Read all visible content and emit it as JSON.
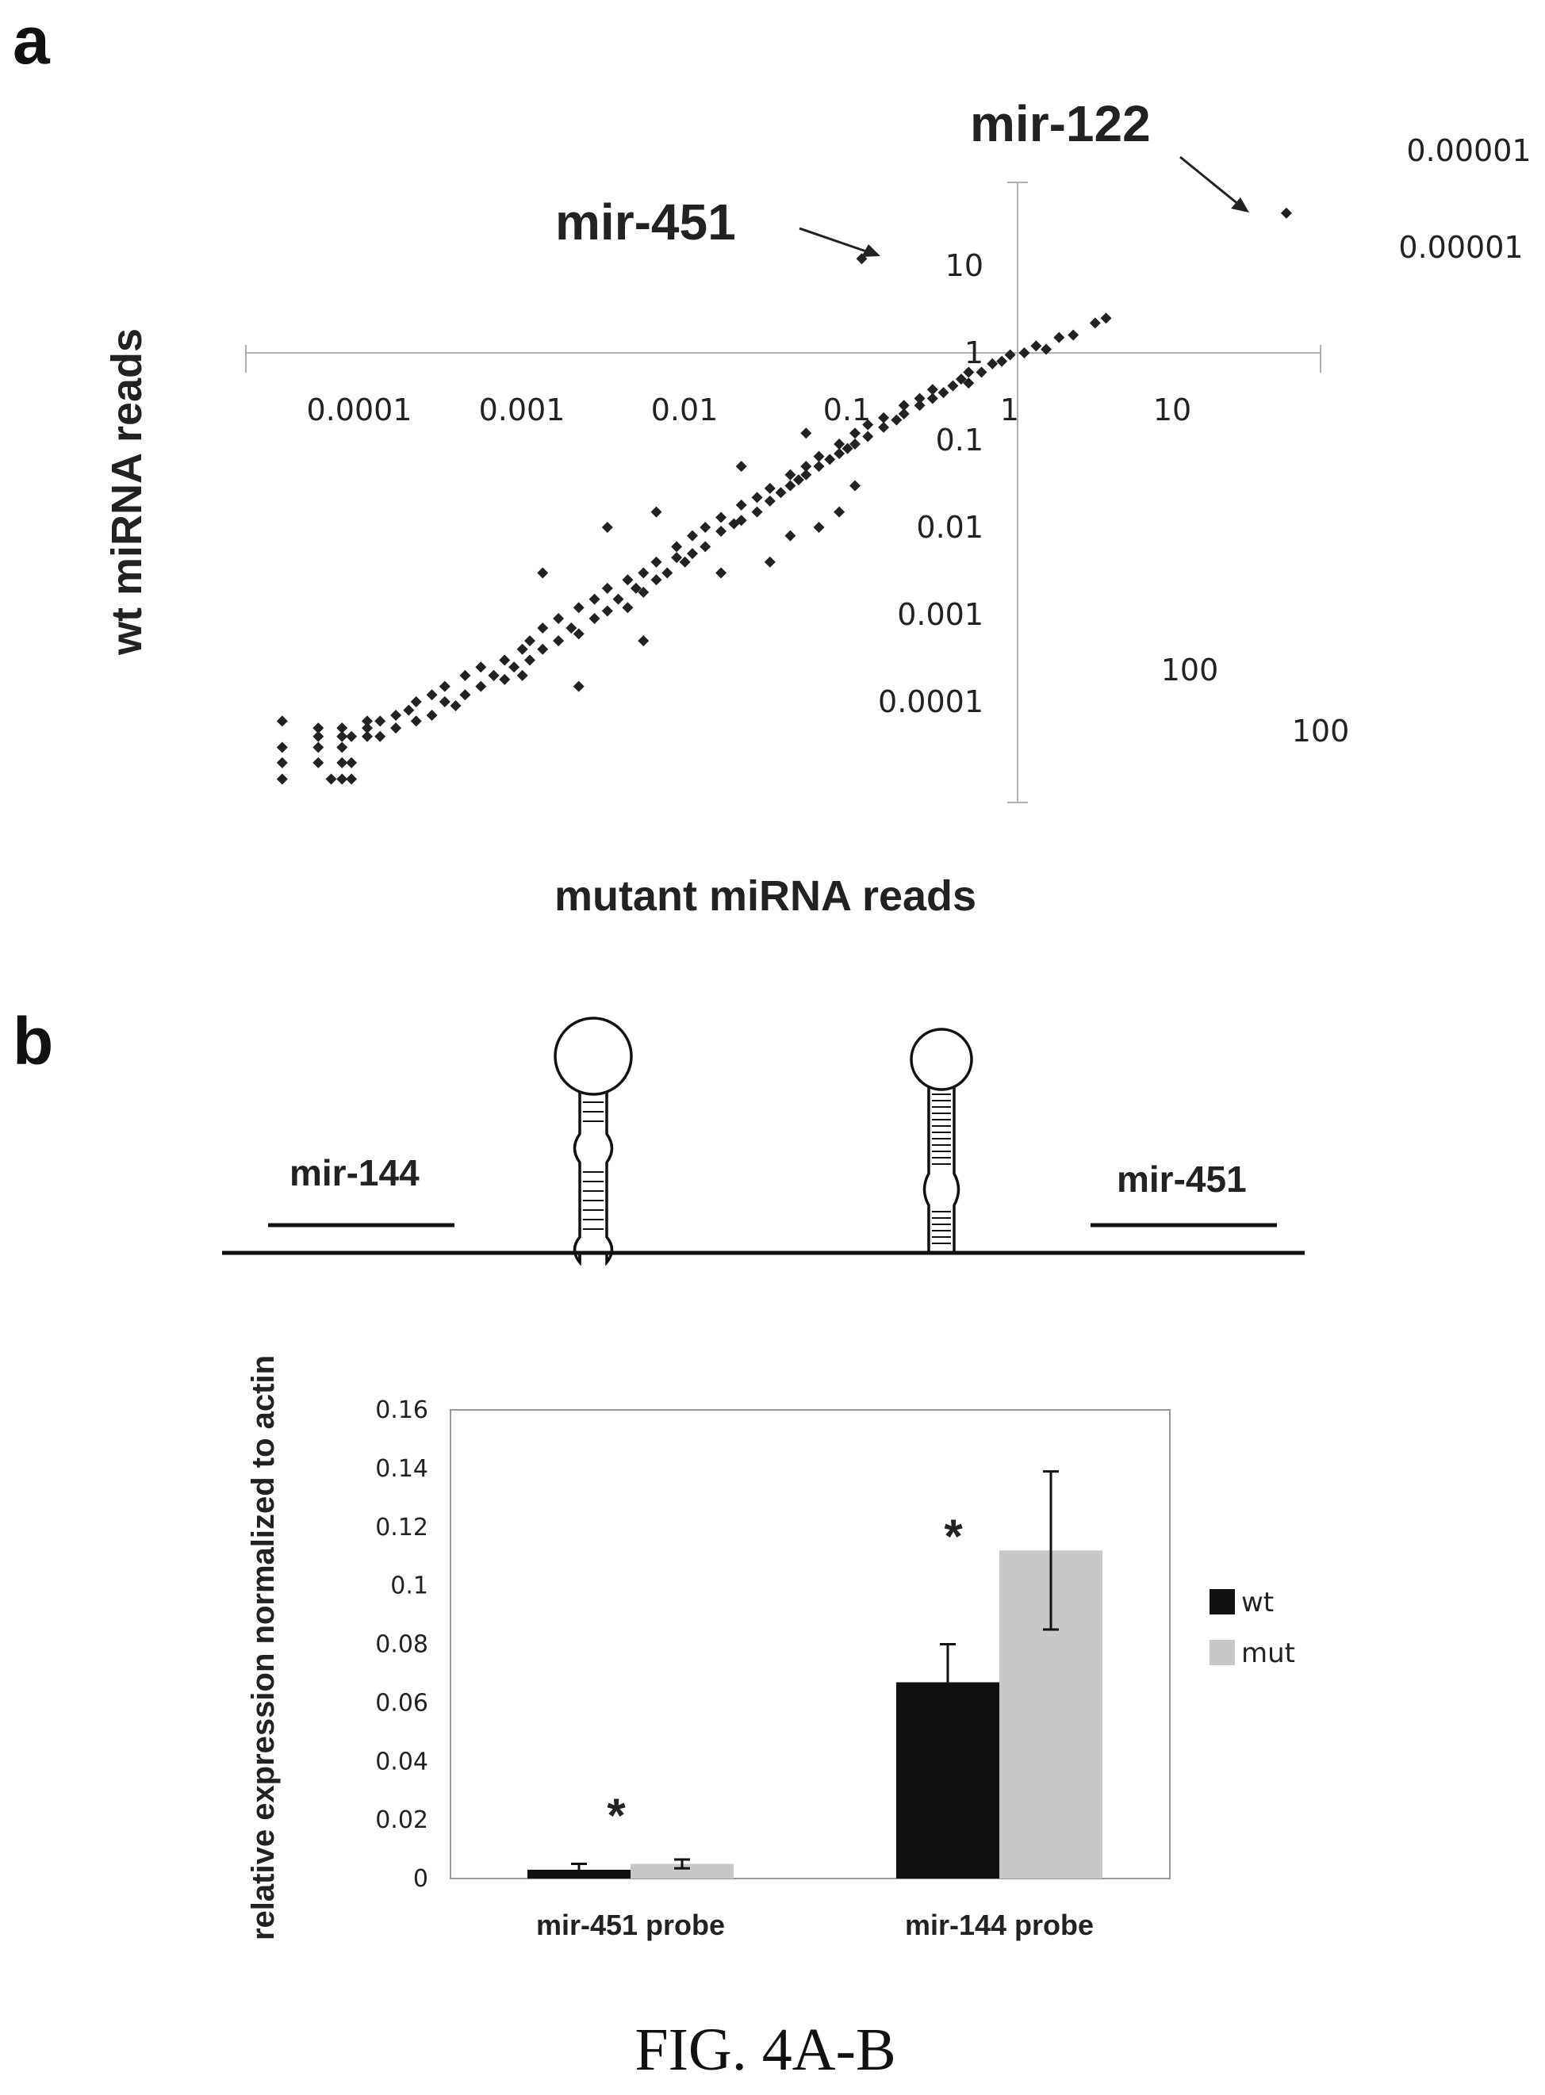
{
  "figure": {
    "panel_a_letter": "a",
    "panel_b_letter": "b",
    "caption": "FIG. 4A-B"
  },
  "chart_data": [
    {
      "type": "scatter",
      "xlabel": "mutant miRNA reads",
      "ylabel": "wt miRNA reads",
      "x_scale": "log",
      "y_scale": "log",
      "xlim": [
        1e-05,
        100
      ],
      "ylim": [
        1e-05,
        100
      ],
      "x_ticks": [
        "0.0001",
        "0.001",
        "0.01",
        "0.1",
        "1",
        "10"
      ],
      "y_ticks": [
        "10",
        "1",
        "0.1",
        "0.01",
        "0.001",
        "0.0001"
      ],
      "stray_labels": [
        "0.00001",
        "0.00001",
        "100",
        "100"
      ],
      "annotations": [
        {
          "text": "mir-451",
          "x": 0.11,
          "y": 12
        },
        {
          "text": "mir-122",
          "x": 45,
          "y": 40
        }
      ],
      "points": [
        [
          3e-05,
          6e-05
        ],
        [
          3e-05,
          3e-05
        ],
        [
          3e-05,
          2e-05
        ],
        [
          3e-05,
          1.3e-05
        ],
        [
          5e-05,
          5e-05
        ],
        [
          5e-05,
          4e-05
        ],
        [
          5e-05,
          3e-05
        ],
        [
          5e-05,
          2e-05
        ],
        [
          6e-05,
          1.3e-05
        ],
        [
          7e-05,
          1.3e-05
        ],
        [
          8e-05,
          1.3e-05
        ],
        [
          7e-05,
          5e-05
        ],
        [
          7e-05,
          4e-05
        ],
        [
          7e-05,
          3e-05
        ],
        [
          7e-05,
          2e-05
        ],
        [
          8e-05,
          4e-05
        ],
        [
          8e-05,
          2e-05
        ],
        [
          0.0001,
          6e-05
        ],
        [
          0.0001,
          5e-05
        ],
        [
          0.0001,
          4e-05
        ],
        [
          0.00012,
          4e-05
        ],
        [
          0.00012,
          6e-05
        ],
        [
          0.00015,
          5e-05
        ],
        [
          0.00015,
          7e-05
        ],
        [
          0.00018,
          8e-05
        ],
        [
          0.0002,
          6e-05
        ],
        [
          0.0002,
          0.0001
        ],
        [
          0.00025,
          7e-05
        ],
        [
          0.00025,
          0.00012
        ],
        [
          0.0003,
          0.0001
        ],
        [
          0.0003,
          0.00015
        ],
        [
          0.00035,
          9e-05
        ],
        [
          0.0004,
          0.00012
        ],
        [
          0.0004,
          0.0002
        ],
        [
          0.0005,
          0.00015
        ],
        [
          0.0005,
          0.00025
        ],
        [
          0.0006,
          0.0002
        ],
        [
          0.0007,
          0.00018
        ],
        [
          0.0007,
          0.0003
        ],
        [
          0.0008,
          0.00025
        ],
        [
          0.0009,
          0.0004
        ],
        [
          0.001,
          0.0003
        ],
        [
          0.001,
          0.0005
        ],
        [
          0.0012,
          0.0004
        ],
        [
          0.0012,
          0.0007
        ],
        [
          0.0015,
          0.0005
        ],
        [
          0.0015,
          0.0009
        ],
        [
          0.0018,
          0.0007
        ],
        [
          0.002,
          0.0006
        ],
        [
          0.002,
          0.0012
        ],
        [
          0.0025,
          0.0009
        ],
        [
          0.0025,
          0.0015
        ],
        [
          0.003,
          0.0011
        ],
        [
          0.003,
          0.002
        ],
        [
          0.0035,
          0.0015
        ],
        [
          0.004,
          0.0012
        ],
        [
          0.004,
          0.0025
        ],
        [
          0.0045,
          0.002
        ],
        [
          0.005,
          0.0018
        ],
        [
          0.005,
          0.003
        ],
        [
          0.006,
          0.0025
        ],
        [
          0.006,
          0.004
        ],
        [
          0.007,
          0.003
        ],
        [
          0.008,
          0.0045
        ],
        [
          0.008,
          0.006
        ],
        [
          0.009,
          0.004
        ],
        [
          0.01,
          0.005
        ],
        [
          0.01,
          0.008
        ],
        [
          0.012,
          0.006
        ],
        [
          0.012,
          0.01
        ],
        [
          0.015,
          0.009
        ],
        [
          0.015,
          0.013
        ],
        [
          0.018,
          0.011
        ],
        [
          0.02,
          0.012
        ],
        [
          0.02,
          0.018
        ],
        [
          0.025,
          0.015
        ],
        [
          0.025,
          0.022
        ],
        [
          0.03,
          0.02
        ],
        [
          0.03,
          0.028
        ],
        [
          0.035,
          0.025
        ],
        [
          0.04,
          0.03
        ],
        [
          0.04,
          0.04
        ],
        [
          0.045,
          0.035
        ],
        [
          0.05,
          0.04
        ],
        [
          0.05,
          0.05
        ],
        [
          0.06,
          0.05
        ],
        [
          0.06,
          0.065
        ],
        [
          0.07,
          0.06
        ],
        [
          0.08,
          0.07
        ],
        [
          0.08,
          0.09
        ],
        [
          0.09,
          0.08
        ],
        [
          0.1,
          0.09
        ],
        [
          0.1,
          0.12
        ],
        [
          0.12,
          0.11
        ],
        [
          0.12,
          0.15
        ],
        [
          0.15,
          0.14
        ],
        [
          0.15,
          0.18
        ],
        [
          0.18,
          0.17
        ],
        [
          0.2,
          0.2
        ],
        [
          0.2,
          0.25
        ],
        [
          0.25,
          0.25
        ],
        [
          0.25,
          0.3
        ],
        [
          0.3,
          0.3
        ],
        [
          0.3,
          0.38
        ],
        [
          0.35,
          0.35
        ],
        [
          0.4,
          0.42
        ],
        [
          0.45,
          0.5
        ],
        [
          0.5,
          0.45
        ],
        [
          0.5,
          0.6
        ],
        [
          0.6,
          0.6
        ],
        [
          0.7,
          0.75
        ],
        [
          0.8,
          0.8
        ],
        [
          0.9,
          0.95
        ],
        [
          1.1,
          1.0
        ],
        [
          1.3,
          1.2
        ],
        [
          1.5,
          1.1
        ],
        [
          1.8,
          1.5
        ],
        [
          2.2,
          1.6
        ],
        [
          3.0,
          2.2
        ],
        [
          3.5,
          2.5
        ],
        [
          0.002,
          0.00015
        ],
        [
          0.005,
          0.0005
        ],
        [
          0.03,
          0.004
        ],
        [
          0.06,
          0.01
        ],
        [
          0.08,
          0.015
        ],
        [
          0.0012,
          0.003
        ],
        [
          0.003,
          0.01
        ],
        [
          0.02,
          0.05
        ],
        [
          0.006,
          0.015
        ],
        [
          0.05,
          0.12
        ],
        [
          0.0006,
          0.0002
        ],
        [
          0.0009,
          0.0002
        ],
        [
          0.015,
          0.003
        ],
        [
          0.04,
          0.008
        ],
        [
          0.1,
          0.03
        ]
      ]
    },
    {
      "type": "bar",
      "ylabel": "relative expression normalized to actin",
      "ylim": [
        0,
        0.16
      ],
      "y_ticks": [
        "0.16",
        "0.14",
        "0.12",
        "0.1",
        "0.08",
        "0.06",
        "0.04",
        "0.02",
        "0"
      ],
      "categories": [
        "mir-451 probe",
        "mir-144 probe"
      ],
      "series": [
        {
          "name": "wt",
          "color": "#111111",
          "values": [
            0.003,
            0.067
          ],
          "errors": [
            0.002,
            0.013
          ]
        },
        {
          "name": "mut",
          "color": "#c8c8c8",
          "values": [
            0.005,
            0.112
          ],
          "errors": [
            0.0015,
            0.027
          ]
        }
      ],
      "significance": [
        "*",
        "*"
      ],
      "legend_position": "right"
    }
  ],
  "diagram": {
    "gene_left": "mir-144",
    "gene_right": "mir-451"
  }
}
